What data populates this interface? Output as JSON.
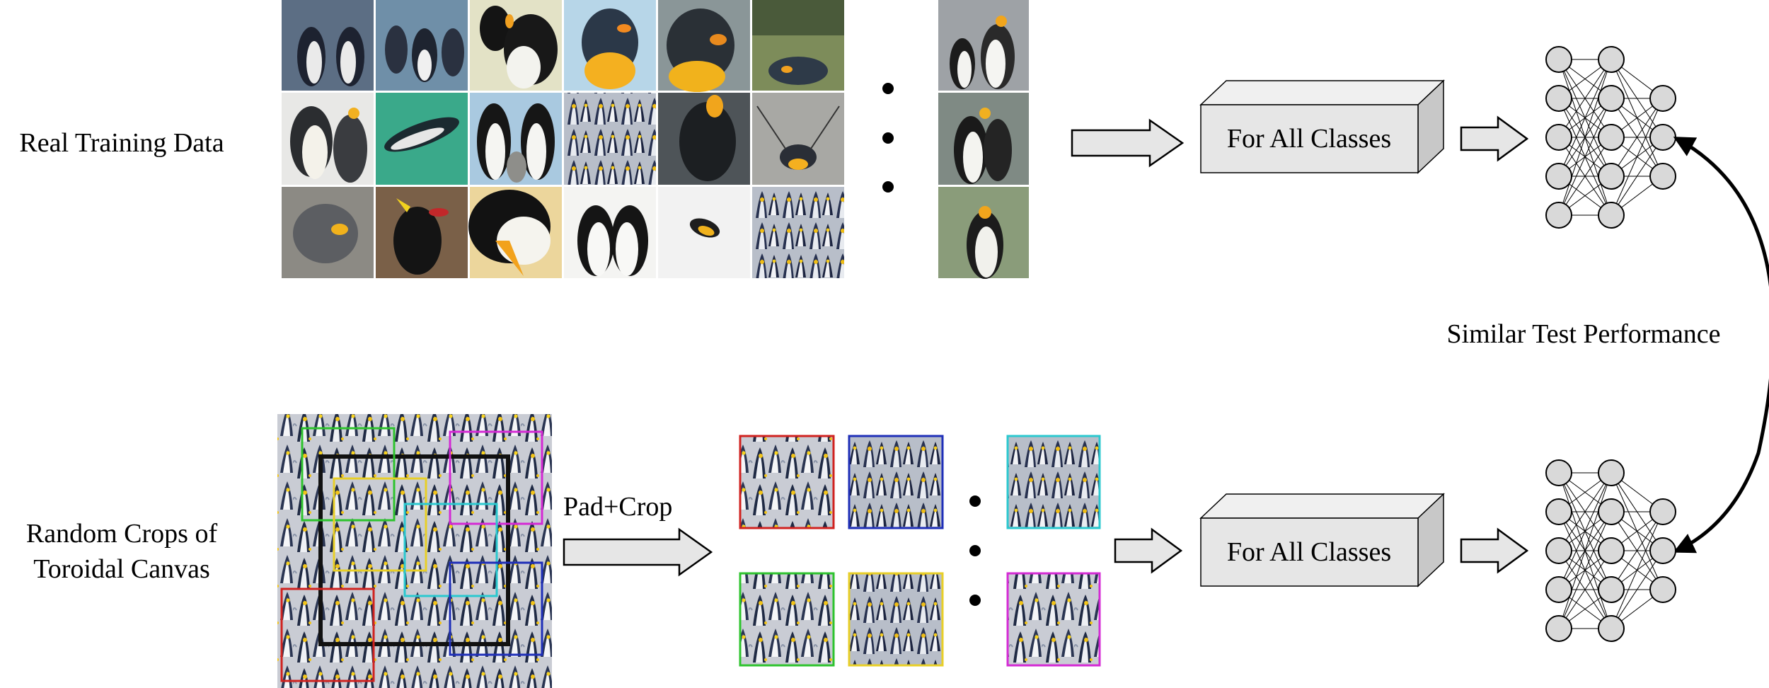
{
  "labels": {
    "real_training_data": "Real Training Data",
    "random_crops_line1": "Random Crops of",
    "random_crops_line2": "Toroidal Canvas",
    "pad_crop": "Pad+Crop",
    "for_all_classes_top": "For All Classes",
    "for_all_classes_bottom": "For All Classes",
    "similar_test_performance": "Similar Test Performance"
  },
  "colors": {
    "crop_red": "#d0221f",
    "crop_blue": "#1f2fb8",
    "crop_cyan": "#2bc8cf",
    "crop_green": "#2ec32e",
    "crop_yellow": "#e8cf27",
    "crop_magenta": "#d42ad4",
    "node_fill": "#d9d9d9",
    "box_fill": "#e6e6e6"
  },
  "network": {
    "layer_sizes": [
      5,
      5,
      3
    ]
  }
}
